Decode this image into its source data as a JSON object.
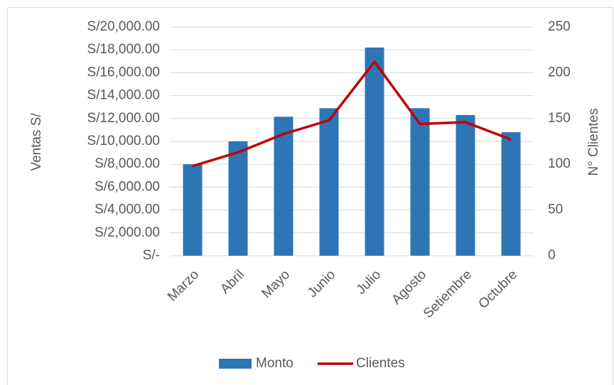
{
  "chart_data": {
    "type": "combo",
    "categories": [
      "Marzo",
      "Abril",
      "Mayo",
      "Junio",
      "Julio",
      "Agosto",
      "Setiembre",
      "Octubre"
    ],
    "series": [
      {
        "name": "Monto",
        "type": "bar",
        "color": "#2e75b6",
        "values": [
          8000,
          10000,
          12150,
          12900,
          18200,
          12900,
          12300,
          10800
        ]
      },
      {
        "name": "Clientes",
        "type": "line",
        "axis": "y2",
        "color": "#c00000",
        "values": [
          98,
          113,
          133,
          148,
          212,
          144,
          146,
          127
        ]
      }
    ],
    "y_label": "Ventas S/",
    "y2_label": "N° Clientes",
    "ylim": [
      0,
      20000
    ],
    "yticks": [
      {
        "value": 0,
        "label": "S/-"
      },
      {
        "value": 2000,
        "label": "S/2,000.00"
      },
      {
        "value": 4000,
        "label": "S/4,000.00"
      },
      {
        "value": 6000,
        "label": "S/6,000.00"
      },
      {
        "value": 8000,
        "label": "S/8,000.00"
      },
      {
        "value": 10000,
        "label": "S/10,000.00"
      },
      {
        "value": 12000,
        "label": "S/12,000.00"
      },
      {
        "value": 14000,
        "label": "S/14,000.00"
      },
      {
        "value": 16000,
        "label": "S/16,000.00"
      },
      {
        "value": 18000,
        "label": "S/18,000.00"
      },
      {
        "value": 20000,
        "label": "S/20,000.00"
      }
    ],
    "y2lim": [
      0,
      250
    ],
    "y2ticks": [
      0,
      50,
      100,
      150,
      200,
      250
    ],
    "grid": true,
    "legend": "bottom"
  }
}
